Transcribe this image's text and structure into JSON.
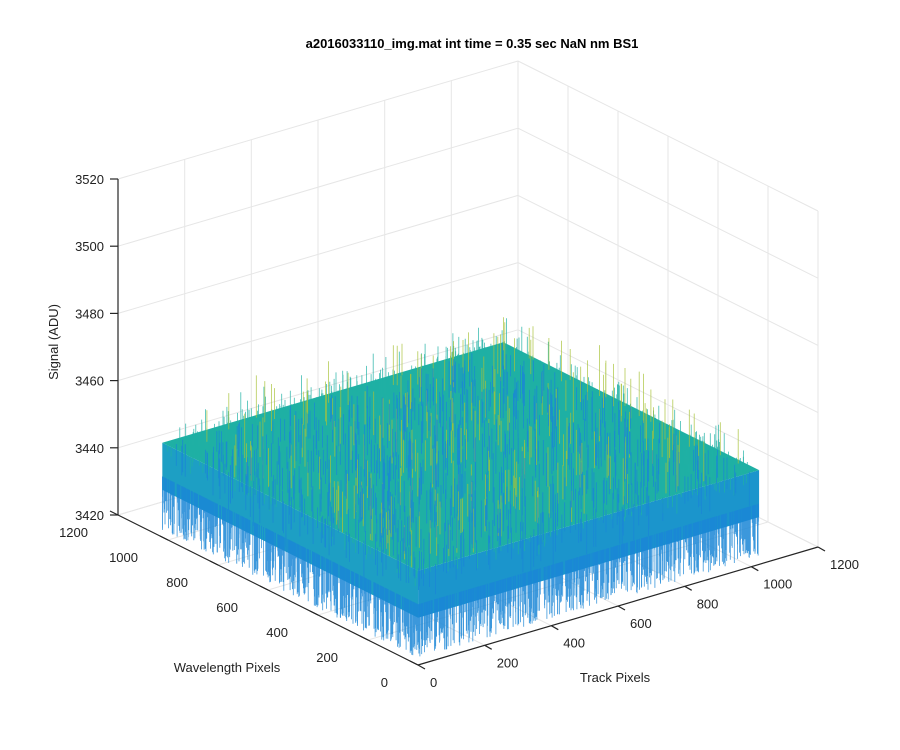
{
  "chart_data": {
    "type": "surface",
    "title": "a2016033110_img.mat int time = 0.35 sec  NaN nm BS1",
    "xlabel": "Track Pixels",
    "ylabel": "Wavelength Pixels",
    "zlabel": "Signal (ADU)",
    "xlim": [
      0,
      1200
    ],
    "ylim": [
      0,
      1200
    ],
    "zlim": [
      3420,
      3520
    ],
    "x_ticks": [
      0,
      200,
      400,
      600,
      800,
      1000,
      1200
    ],
    "y_ticks": [
      0,
      200,
      400,
      600,
      800,
      1000,
      1200
    ],
    "z_ticks": [
      3420,
      3440,
      3460,
      3480,
      3500,
      3520
    ],
    "x_tick_labels": [
      "0",
      "200",
      "400",
      "600",
      "800",
      "1000",
      "1200"
    ],
    "y_tick_labels": [
      "0",
      "200",
      "400",
      "600",
      "800",
      "1000",
      "1200"
    ],
    "z_tick_labels": [
      "3420",
      "3440",
      "3460",
      "3480",
      "3500",
      "3520"
    ],
    "surface": {
      "x_extent": [
        1,
        1024
      ],
      "y_extent": [
        1,
        1024
      ],
      "mean_signal": 3448,
      "noise_range": [
        3425,
        3500
      ],
      "colormap": "parula"
    },
    "grid": true,
    "colors": {
      "low": "#1a86d6",
      "mid": "#1fb0a4",
      "high": "#a8c23a"
    }
  }
}
